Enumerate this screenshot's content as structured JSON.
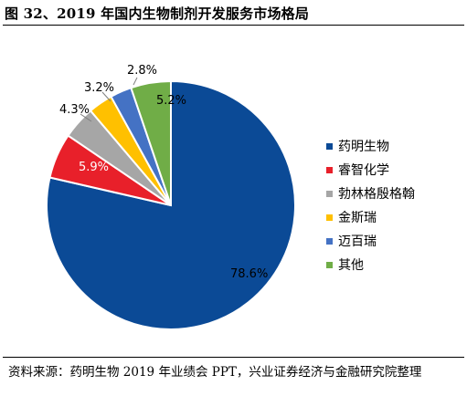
{
  "title": "图 32、2019 年国内生物制剂开发服务市场格局",
  "source": "资料来源：药明生物 2019 年业绩会 PPT，兴业证券经济与金融研究院整理",
  "chart_data": {
    "type": "pie",
    "categories": [
      "药明生物",
      "睿智化学",
      "勃林格殷格翰",
      "金斯瑞",
      "迈百瑞",
      "其他"
    ],
    "values": [
      78.6,
      5.9,
      4.3,
      3.2,
      2.8,
      5.2
    ],
    "labels": [
      "78.6%",
      "5.9%",
      "4.3%",
      "3.2%",
      "2.8%",
      "5.2%"
    ],
    "colors": [
      "#0b4a96",
      "#e8202a",
      "#a6a6a6",
      "#ffc000",
      "#4472c4",
      "#70ad47"
    ],
    "legend_position": "right"
  }
}
